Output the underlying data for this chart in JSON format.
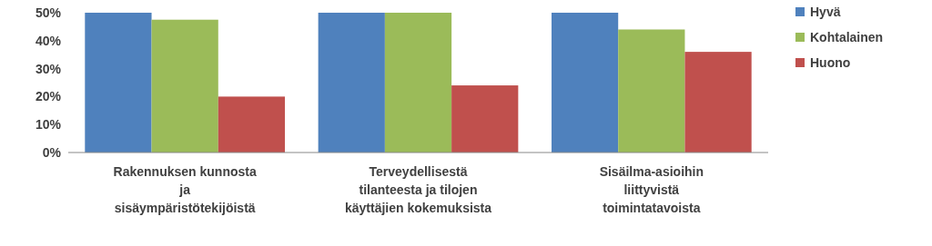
{
  "chart_data": {
    "type": "bar",
    "categories": [
      "Rakennuksen kunnosta\nja\nsisäympäristötekijöistä",
      "Terveydellisestä\ntilanteesta ja tilojen\nkäyttäjien kokemuksista",
      "Sisäilma-asioihin\nliittyvistä\ntoimintatavoista"
    ],
    "series": [
      {
        "name": "Hyvä",
        "color": "#4f81bd",
        "values": [
          50,
          50,
          50
        ]
      },
      {
        "name": "Kohtalainen",
        "color": "#9bbb59",
        "values": [
          47.5,
          50,
          44
        ]
      },
      {
        "name": "Huono",
        "color": "#c0504d",
        "values": [
          20,
          24,
          36
        ]
      }
    ],
    "ylim": [
      0,
      50
    ],
    "yticks": [
      {
        "value": 0,
        "label": "0%"
      },
      {
        "value": 10,
        "label": "10%"
      },
      {
        "value": 20,
        "label": "20%"
      },
      {
        "value": 30,
        "label": "30%"
      },
      {
        "value": 40,
        "label": "40%"
      },
      {
        "value": 50,
        "label": "50%"
      }
    ],
    "grid": false,
    "legend": "right"
  }
}
